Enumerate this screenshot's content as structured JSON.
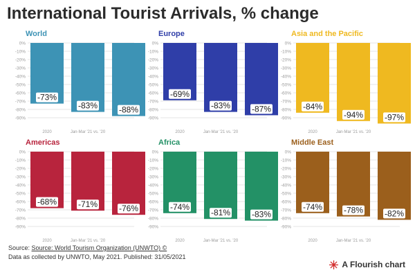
{
  "page": {
    "title": "International Tourist Arrivals, % change"
  },
  "colors": {
    "World": "#3d93b5",
    "Europe": "#2f3ea8",
    "Asia and the Pacific": "#efb920",
    "Americas": "#b8243d",
    "Africa": "#239166",
    "Middle East": "#9b5f1c",
    "gridline": "#e4e4e4",
    "label_text": "#222222",
    "axis_text": "#9a9a9a"
  },
  "chart_data": [
    {
      "type": "bar",
      "title": "World",
      "categories": [
        "2020",
        "Jan-Mar '21 vs. '20",
        ""
      ],
      "values": [
        -73,
        -83,
        -88
      ],
      "labels": [
        "-73%",
        "-83%",
        "-88%"
      ],
      "ylim": [
        -90,
        0
      ],
      "yticks": [
        "0%",
        "-10%",
        "-20%",
        "-30%",
        "-40%",
        "-50%",
        "-60%",
        "-70%",
        "-80%",
        "-90%"
      ]
    },
    {
      "type": "bar",
      "title": "Europe",
      "categories": [
        "2020",
        "Jan-Mar '21 vs. '20",
        ""
      ],
      "values": [
        -69,
        -83,
        -87
      ],
      "labels": [
        "-69%",
        "-83%",
        "-87%"
      ],
      "ylim": [
        -90,
        0
      ],
      "yticks": [
        "0%",
        "-10%",
        "-20%",
        "-30%",
        "-40%",
        "-50%",
        "-60%",
        "-70%",
        "-80%",
        "-90%"
      ]
    },
    {
      "type": "bar",
      "title": "Asia and the Pacific",
      "categories": [
        "2020",
        "Jan-Mar '21 vs. '20",
        ""
      ],
      "values": [
        -84,
        -94,
        -97
      ],
      "labels": [
        "-84%",
        "-94%",
        "-97%"
      ],
      "ylim": [
        -100,
        0
      ],
      "yticks": [
        "0%",
        "-10%",
        "-20%",
        "-30%",
        "-40%",
        "-50%",
        "-60%",
        "-70%",
        "-80%",
        "-90%"
      ]
    },
    {
      "type": "bar",
      "title": "Americas",
      "categories": [
        "2020",
        "Jan-Mar '21 vs. '20",
        ""
      ],
      "values": [
        -68,
        -71,
        -76
      ],
      "labels": [
        "-68%",
        "-71%",
        "-76%"
      ],
      "ylim": [
        -90,
        0
      ],
      "yticks": [
        "0%",
        "-10%",
        "-20%",
        "-30%",
        "-40%",
        "-50%",
        "-60%",
        "-70%",
        "-80%",
        "-90%"
      ]
    },
    {
      "type": "bar",
      "title": "Africa",
      "categories": [
        "2020",
        "Jan-Mar '21 vs. '20",
        ""
      ],
      "values": [
        -74,
        -81,
        -83
      ],
      "labels": [
        "-74%",
        "-81%",
        "-83%"
      ],
      "ylim": [
        -90,
        0
      ],
      "yticks": [
        "0%",
        "-10%",
        "-20%",
        "-30%",
        "-40%",
        "-50%",
        "-60%",
        "-70%",
        "-80%",
        "-90%"
      ]
    },
    {
      "type": "bar",
      "title": "Middle East",
      "categories": [
        "2020",
        "Jan-Mar '21 vs. '20",
        ""
      ],
      "values": [
        -74,
        -78,
        -82
      ],
      "labels": [
        "-74%",
        "-78%",
        "-82%"
      ],
      "ylim": [
        -90,
        0
      ],
      "yticks": [
        "0%",
        "-10%",
        "-20%",
        "-30%",
        "-40%",
        "-50%",
        "-60%",
        "-70%",
        "-80%",
        "-90%"
      ]
    }
  ],
  "footer": {
    "source_prefix": "Source: ",
    "source_link": "Source: World Tourism Organization (UNWTO) ©",
    "note": "Data as collected by UNWTO, May 2021. Published: 31/05/2021",
    "brand": "A Flourish chart"
  }
}
